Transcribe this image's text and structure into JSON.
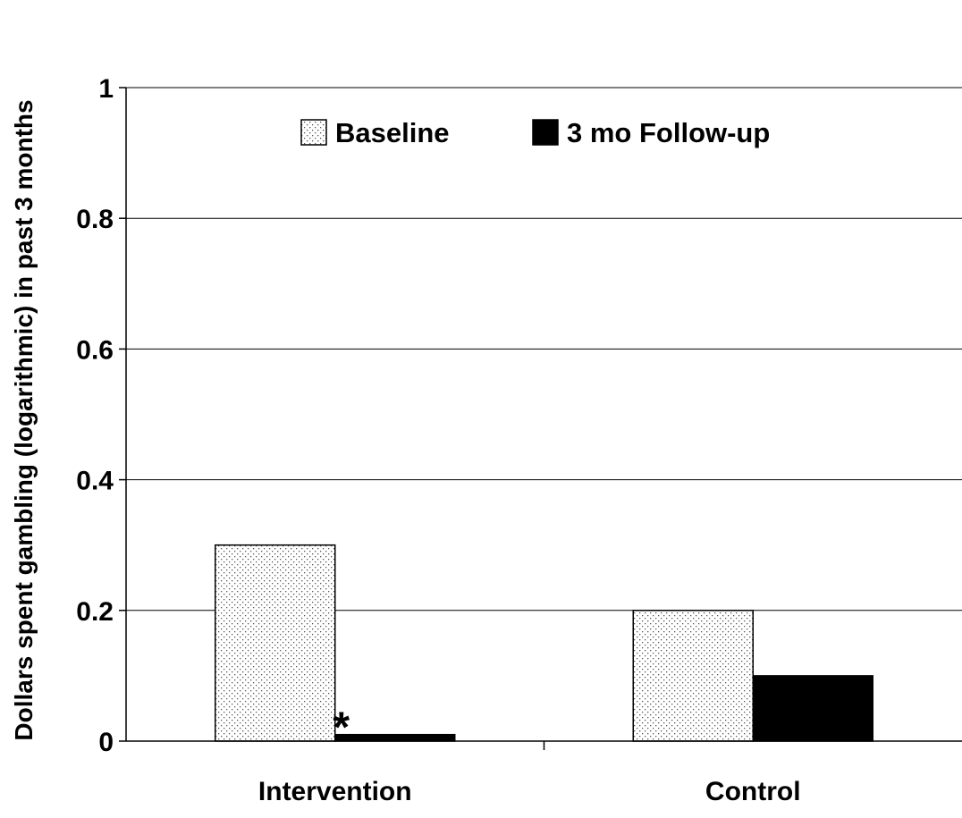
{
  "chart_data": {
    "type": "bar",
    "title": "",
    "xlabel": "",
    "ylabel": "Dollars spent gambling (logarithmic) in past 3 months",
    "categories": [
      "Intervention",
      "Control"
    ],
    "series": [
      {
        "name": "Baseline",
        "values": [
          0.3,
          0.2
        ],
        "fill": "dotted",
        "color": "#ffffff"
      },
      {
        "name": "3 mo Follow-up",
        "values": [
          0.01,
          0.1
        ],
        "fill": "solid",
        "color": "#000000"
      }
    ],
    "ylim": [
      0,
      1
    ],
    "yticks": [
      "0",
      "0.2",
      "0.4",
      "0.6",
      "0.8",
      "1"
    ],
    "yticks_values": [
      0,
      0.2,
      0.4,
      0.6,
      0.8,
      1
    ],
    "grid": true,
    "legend": "top",
    "annotations": [
      {
        "text": "*",
        "category": "Intervention",
        "series": "3 mo Follow-up"
      }
    ]
  }
}
